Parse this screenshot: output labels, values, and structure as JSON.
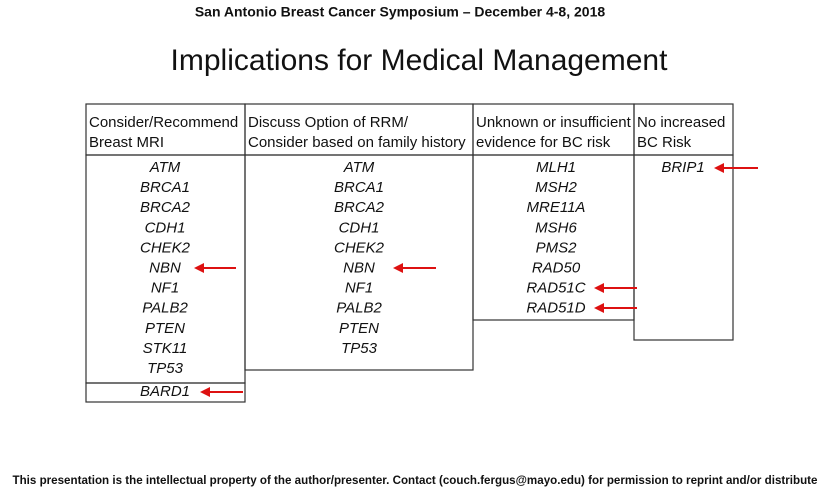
{
  "header": {
    "conference": "San Antonio Breast Cancer Symposium – December 4-8, 2018"
  },
  "title": "Implications for Medical Management",
  "table": {
    "columns": [
      {
        "heading": [
          "Consider/Recommend",
          "Breast MRI"
        ],
        "genes": [
          "ATM",
          "BRCA1",
          "BRCA2",
          "CDH1",
          "CHEK2",
          "NBN",
          "NF1",
          "PALB2",
          "PTEN",
          "STK11",
          "TP53"
        ],
        "extra_genes": [
          "BARD1"
        ]
      },
      {
        "heading": [
          "Discuss Option of RRM/",
          "Consider based on family history"
        ],
        "genes": [
          "ATM",
          "BRCA1",
          "BRCA2",
          "CDH1",
          "CHEK2",
          "NBN",
          "NF1",
          "PALB2",
          "PTEN",
          "TP53"
        ]
      },
      {
        "heading": [
          "Unknown or insufficient",
          "evidence for BC risk"
        ],
        "genes": [
          "MLH1",
          "MSH2",
          "MRE11A",
          "MSH6",
          "PMS2",
          "RAD50",
          "RAD51C",
          "RAD51D"
        ]
      },
      {
        "heading": [
          "No increased",
          "BC Risk"
        ],
        "genes": [
          "BRIP1"
        ]
      }
    ]
  },
  "footer": "This presentation is the intellectual property of the author/presenter.  Contact (couch.fergus@mayo.edu) for permission to reprint and/or distribute"
}
